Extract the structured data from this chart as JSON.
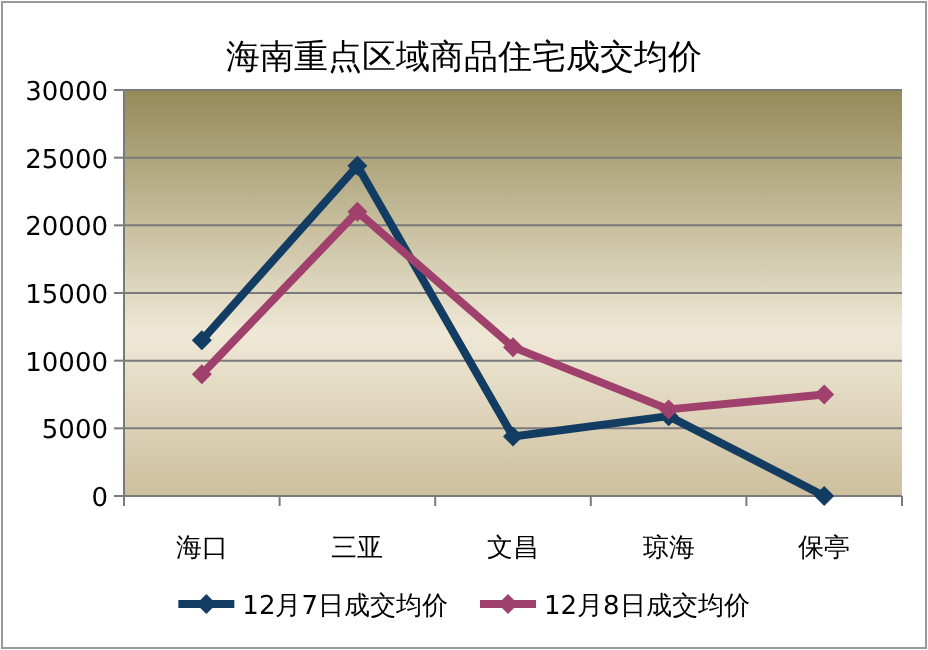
{
  "chart_data": {
    "type": "line",
    "title": "海南重点区域商品住宅成交均价",
    "categories": [
      "海口",
      "三亚",
      "文昌",
      "琼海",
      "保亭"
    ],
    "series": [
      {
        "name": "12月7日成交均价",
        "color": "#123c62",
        "values": [
          11500,
          24400,
          4400,
          5900,
          0
        ]
      },
      {
        "name": "12月8日成交均价",
        "color": "#a0406c",
        "values": [
          9000,
          21000,
          11000,
          6400,
          7500
        ]
      }
    ],
    "ylim": [
      0,
      30000
    ],
    "yticks": [
      0,
      5000,
      10000,
      15000,
      20000,
      25000,
      30000
    ],
    "grid": "y",
    "legend": "bottom",
    "marker": "diamond",
    "line_style": "solid"
  }
}
